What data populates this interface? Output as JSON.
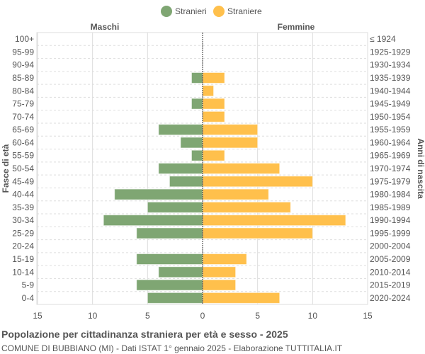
{
  "chart_data": {
    "type": "bar",
    "orientation": "horizontal-pyramid",
    "title": "Popolazione per cittadinanza straniera per età e sesso - 2025",
    "subtitle": "COMUNE DI BUBBIANO (MI) - Dati ISTAT 1° gennaio 2025 - Elaborazione TUTTITALIA.IT",
    "ylabel_left": "Fasce di età",
    "ylabel_right": "Anni di nascita",
    "left_header": "Maschi",
    "right_header": "Femmine",
    "legend_position": "top",
    "xlim": [
      -15,
      15
    ],
    "x_ticks": [
      "15",
      "10",
      "5",
      "0",
      "5",
      "10",
      "15"
    ],
    "grid": true,
    "categories": [
      "100+",
      "95-99",
      "90-94",
      "85-89",
      "80-84",
      "75-79",
      "70-74",
      "65-69",
      "60-64",
      "55-59",
      "50-54",
      "45-49",
      "40-44",
      "35-39",
      "30-34",
      "25-29",
      "20-24",
      "15-19",
      "10-14",
      "5-9",
      "0-4"
    ],
    "birth_years": [
      "≤ 1924",
      "1925-1929",
      "1930-1934",
      "1935-1939",
      "1940-1944",
      "1945-1949",
      "1950-1954",
      "1955-1959",
      "1960-1964",
      "1965-1969",
      "1970-1974",
      "1975-1979",
      "1980-1984",
      "1985-1989",
      "1990-1994",
      "1995-1999",
      "2000-2004",
      "2005-2009",
      "2010-2014",
      "2015-2019",
      "2020-2024"
    ],
    "series": [
      {
        "name": "Stranieri",
        "color": "#7fa673",
        "side": "left",
        "values": [
          0,
          0,
          0,
          1,
          0,
          1,
          0,
          4,
          2,
          1,
          4,
          3,
          8,
          5,
          9,
          6,
          0,
          6,
          4,
          6,
          5
        ]
      },
      {
        "name": "Straniere",
        "color": "#ffc04c",
        "side": "right",
        "values": [
          0,
          0,
          0,
          2,
          1,
          2,
          2,
          5,
          5,
          2,
          7,
          10,
          6,
          8,
          13,
          10,
          0,
          4,
          3,
          3,
          7
        ]
      }
    ]
  }
}
